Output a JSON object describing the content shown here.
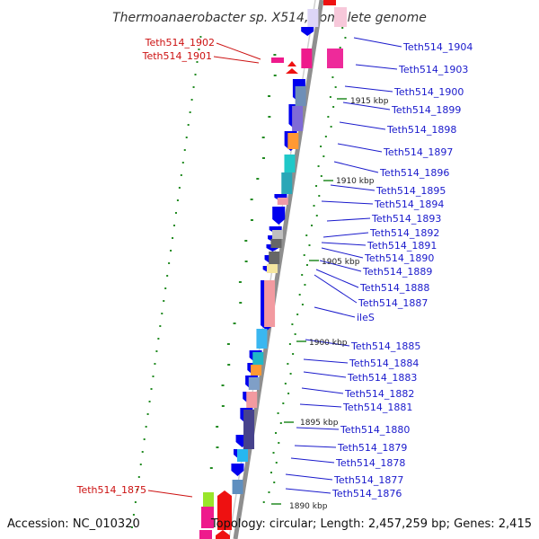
{
  "title": "Thermoanaerobacter sp. X514, complete genome",
  "accession": "Accession: NC_010320",
  "summary": "Topology: circular; Length: 2,457,259 bp; Genes: 2,415",
  "ticks": [
    "1915 kbp",
    "1910 kbp",
    "1905 kbp",
    "1900 kbp",
    "1895 kbp",
    "1890 kbp"
  ],
  "right_genes": [
    "Teth514_1904",
    "Teth514_1903",
    "Teth514_1900",
    "Teth514_1899",
    "Teth514_1898",
    "Teth514_1897",
    "Teth514_1896",
    "Teth514_1895",
    "Teth514_1894",
    "Teth514_1893",
    "Teth514_1892",
    "Teth514_1891",
    "Teth514_1890",
    "Teth514_1889",
    "Teth514_1888",
    "Teth514_1887",
    "ileS",
    "Teth514_1885",
    "Teth514_1884",
    "Teth514_1883",
    "Teth514_1882",
    "Teth514_1881",
    "Teth514_1880",
    "Teth514_1879",
    "Teth514_1878",
    "Teth514_1877",
    "Teth514_1876"
  ],
  "left_genes": [
    "Teth514_1902",
    "Teth514_1901",
    "Teth514_1875"
  ],
  "colors": {
    "backbone": "#888888",
    "forward_arrow": "#0000ee",
    "reverse_arrow": "#ee1111",
    "gc_dot": "#228b22",
    "label_blue": "#1a1acc",
    "label_red": "#cc1111"
  }
}
